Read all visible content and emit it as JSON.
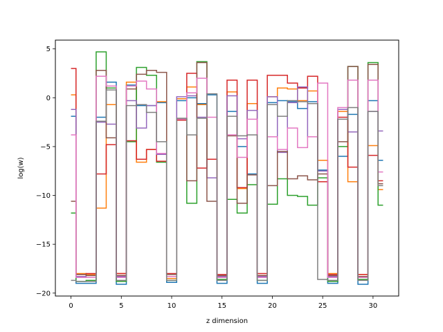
{
  "chart_data": {
    "type": "line",
    "step": "mid",
    "title": "",
    "xlabel": "z dimension",
    "ylabel": "log(w)",
    "xlim": [
      -1.55,
      32.55
    ],
    "ylim": [
      -20.3,
      5.9
    ],
    "x_ticks": [
      0,
      5,
      10,
      15,
      20,
      25,
      30
    ],
    "y_ticks": [
      5,
      0,
      -5,
      -10,
      -15,
      -20
    ],
    "x_tick_labels": [
      "0",
      "5",
      "10",
      "15",
      "20",
      "25",
      "30"
    ],
    "y_tick_labels": [
      "5",
      "0",
      "−5",
      "−10",
      "−15",
      "−20"
    ],
    "grid": false,
    "x": [
      0,
      1,
      2,
      3,
      4,
      5,
      6,
      7,
      8,
      9,
      10,
      11,
      12,
      13,
      14,
      15,
      16,
      17,
      18,
      19,
      20,
      21,
      22,
      23,
      24,
      25,
      26,
      27,
      28,
      29,
      30,
      31
    ],
    "series": [
      {
        "color": "#1f77b4",
        "values": [
          -1.9,
          -19.0,
          -19.0,
          -2.0,
          1.6,
          -19.1,
          1.3,
          -0.8,
          -0.8,
          -0.5,
          -18.9,
          -0.3,
          0.0,
          -0.6,
          0.3,
          -19.0,
          -1.4,
          -5.0,
          -7.8,
          -19.0,
          -0.5,
          -0.3,
          -0.4,
          -1.1,
          -0.4,
          -7.4,
          -19.0,
          -6.0,
          -1.7,
          -19.1,
          -0.3,
          -6.4
        ]
      },
      {
        "color": "#ff7f0e",
        "values": [
          0.3,
          -18.0,
          -18.1,
          -11.3,
          -0.7,
          -18.0,
          1.6,
          -6.6,
          -5.3,
          -0.4,
          -18.5,
          -0.1,
          1.1,
          -0.7,
          -6.3,
          -18.3,
          0.6,
          -9.3,
          -0.6,
          -18.2,
          0.1,
          1.0,
          0.9,
          -0.3,
          0.7,
          -6.4,
          -18.0,
          -1.4,
          -8.6,
          -18.1,
          -4.9,
          -9.4
        ]
      },
      {
        "color": "#2ca02c",
        "values": [
          -11.8,
          -18.8,
          -18.7,
          4.7,
          1.0,
          -18.8,
          -4.5,
          3.1,
          2.3,
          -6.6,
          -18.7,
          -2.2,
          -10.8,
          3.7,
          -6.3,
          -18.6,
          -10.4,
          -11.8,
          -8.9,
          -18.7,
          -10.9,
          -8.3,
          -10.0,
          -10.1,
          -11.0,
          -8.2,
          -18.8,
          -5.0,
          3.2,
          -18.6,
          3.6,
          -11.0
        ]
      },
      {
        "color": "#d62728",
        "values": [
          3.0,
          -18.1,
          -18.0,
          -7.8,
          -4.8,
          -18.0,
          -4.4,
          -6.3,
          -5.3,
          -6.5,
          -18.0,
          -2.3,
          2.5,
          -7.2,
          -6.3,
          -18.1,
          1.8,
          -9.2,
          1.8,
          -18.0,
          2.3,
          2.3,
          1.5,
          1.0,
          2.2,
          -8.6,
          -18.1,
          -2.0,
          -7.1,
          -18.1,
          -5.9,
          -8.5
        ]
      },
      {
        "color": "#9467bd",
        "values": [
          -1.2,
          -18.3,
          -18.2,
          -2.5,
          -2.7,
          -18.3,
          -0.3,
          -3.1,
          -0.8,
          -5.8,
          -18.3,
          0.1,
          0.2,
          -2.0,
          -8.2,
          -18.3,
          0.2,
          -4.2,
          -1.3,
          -18.3,
          0.1,
          -5.6,
          -0.5,
          1.1,
          -4.0,
          -7.5,
          -18.3,
          -1.2,
          -3.5,
          -18.3,
          -1.4,
          -3.4
        ]
      },
      {
        "color": "#8c564b",
        "values": [
          -10.6,
          -18.1,
          -18.2,
          2.8,
          -4.1,
          -18.2,
          0.9,
          2.4,
          2.8,
          2.6,
          -18.1,
          -2.2,
          -8.5,
          3.6,
          -10.6,
          -18.2,
          -3.9,
          -10.8,
          -7.9,
          -18.2,
          -9.0,
          -5.5,
          -8.3,
          -8.0,
          -8.4,
          -7.8,
          -18.2,
          -4.5,
          3.2,
          -18.3,
          3.4,
          -8.8
        ]
      },
      {
        "color": "#e377c2",
        "values": [
          -3.8,
          -18.4,
          -18.4,
          2.2,
          1.2,
          -18.4,
          1.2,
          1.7,
          0.9,
          -5.7,
          -18.3,
          -2.2,
          0.5,
          2.0,
          -2.0,
          -18.4,
          -3.8,
          -6.1,
          -2.2,
          -18.4,
          -4.0,
          -5.3,
          -3.1,
          -5.1,
          -4.0,
          1.5,
          -18.4,
          -1.0,
          1.8,
          -18.4,
          1.8,
          -7.6
        ]
      },
      {
        "color": "#7f7f7f",
        "values": [
          -18.7,
          -18.8,
          -18.8,
          -2.4,
          0.8,
          -18.7,
          -0.8,
          -0.7,
          -1.5,
          -4.5,
          -18.7,
          -2.1,
          -3.8,
          -2.1,
          0.4,
          -18.7,
          -1.9,
          -3.9,
          -3.8,
          -18.7,
          -0.7,
          -1.9,
          -0.3,
          -0.4,
          -0.6,
          -18.6,
          -18.7,
          -2.2,
          -1.0,
          -18.7,
          -1.4,
          -9.0
        ]
      }
    ]
  }
}
